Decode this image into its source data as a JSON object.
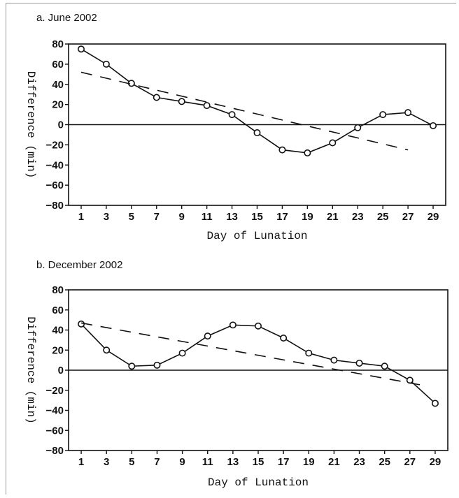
{
  "chart_data": [
    {
      "type": "line",
      "title": "a. June 2002",
      "xlabel": "Day of Lunation",
      "ylabel": "Difference (min)",
      "xticks": [
        1,
        3,
        5,
        7,
        9,
        11,
        13,
        15,
        17,
        19,
        21,
        23,
        25,
        27,
        29
      ],
      "yticks": [
        80,
        60,
        40,
        20,
        0,
        -20,
        -40,
        -60,
        -80
      ],
      "xlim": [
        0,
        30
      ],
      "ylim": [
        -80,
        80
      ],
      "series": [
        {
          "style": "solid-with-circles",
          "x": [
            1,
            3,
            5,
            7,
            9,
            11,
            13,
            15,
            17,
            19,
            21,
            23,
            25,
            27,
            29
          ],
          "y": [
            75,
            60,
            41,
            27,
            23,
            19,
            10,
            -8,
            -25,
            -28,
            -18,
            -3,
            10,
            12,
            -1
          ]
        },
        {
          "style": "dashed",
          "x": [
            1,
            27
          ],
          "y": [
            52,
            -25
          ]
        }
      ],
      "reference_line_y": 0
    },
    {
      "type": "line",
      "title": "b. December 2002",
      "xlabel": "Day of Lunation",
      "ylabel": "Difference (min)",
      "xticks": [
        1,
        3,
        5,
        7,
        9,
        11,
        13,
        15,
        17,
        19,
        21,
        23,
        25,
        27,
        29
      ],
      "yticks": [
        80,
        60,
        40,
        20,
        0,
        -20,
        -40,
        -60,
        -80
      ],
      "xlim": [
        0,
        30
      ],
      "ylim": [
        -80,
        80
      ],
      "series": [
        {
          "style": "solid-with-circles",
          "x": [
            1,
            3,
            5,
            7,
            9,
            11,
            13,
            15,
            17,
            19,
            21,
            23,
            25,
            27,
            29
          ],
          "y": [
            46,
            20,
            4,
            5,
            17,
            34,
            45,
            44,
            32,
            17,
            10,
            7,
            4,
            -10,
            -33
          ]
        },
        {
          "style": "dashed",
          "x": [
            1,
            28
          ],
          "y": [
            47,
            -15
          ]
        }
      ],
      "reference_line_y": 0
    }
  ]
}
